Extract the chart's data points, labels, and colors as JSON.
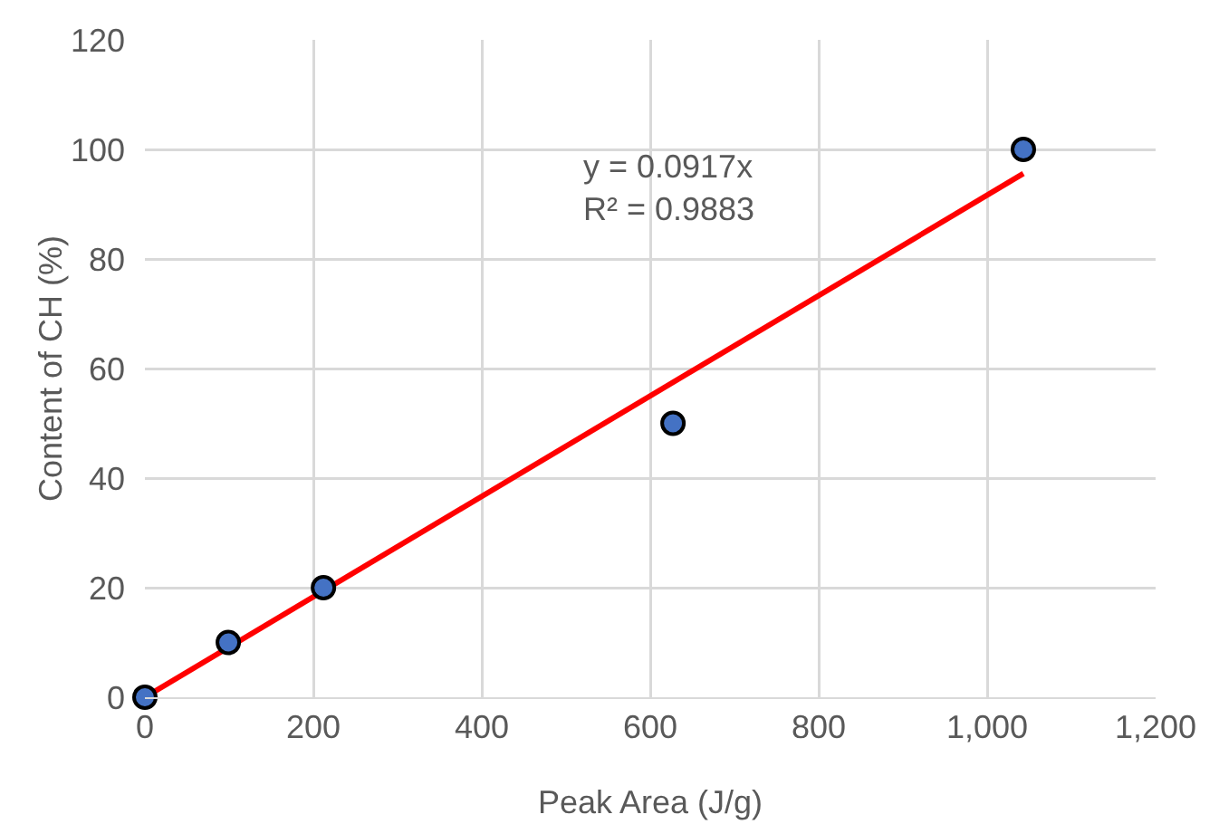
{
  "chart_data": {
    "type": "scatter",
    "xlabel": "Peak Area (J/g)",
    "ylabel": "Content of CH (%)",
    "xlim": [
      0,
      1200
    ],
    "xticks": [
      0,
      200,
      400,
      600,
      800,
      {
        "value": 1000,
        "label": "1,000"
      },
      {
        "value": 1200,
        "label": "1,200"
      }
    ],
    "ylim": [
      0,
      120
    ],
    "yticks": [
      0,
      20,
      40,
      60,
      80,
      100,
      120
    ],
    "grid": true,
    "series": [
      {
        "color": "#4472c4",
        "marker": "circle",
        "x": [
          0,
          99,
          212,
          627,
          1043
        ],
        "values": [
          0,
          10,
          20,
          50,
          100
        ]
      },
      {
        "type": "line",
        "color": "#ff0000",
        "x": [
          0,
          1043
        ],
        "values": [
          0,
          95.6
        ]
      }
    ],
    "annotations": [
      "y = 0.0917x\nR² = 0.9883"
    ]
  }
}
